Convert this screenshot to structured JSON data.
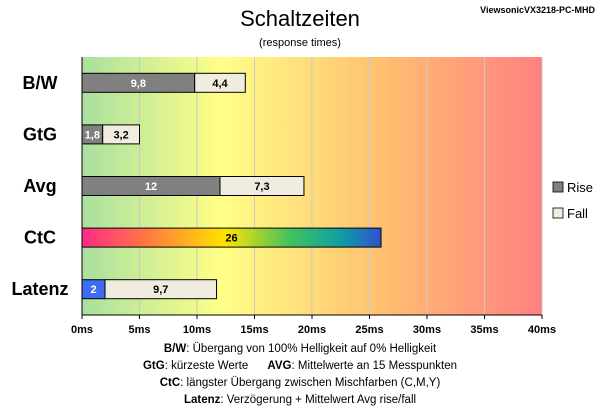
{
  "header": {
    "title": "Schaltzeiten",
    "subtitle": "(response times)",
    "model": "ViewsonicVX3218-PC-MHD"
  },
  "chart_data": {
    "type": "bar",
    "orientation": "horizontal",
    "stacked": true,
    "categories": [
      "B/W",
      "GtG",
      "Avg",
      "CtC",
      "Latenz"
    ],
    "series": [
      {
        "name": "Rise",
        "values": [
          9.8,
          1.8,
          12,
          26,
          2
        ],
        "labels": [
          "9,8",
          "1,8",
          "12",
          "26",
          "2"
        ]
      },
      {
        "name": "Fall",
        "values": [
          4.4,
          3.2,
          7.3,
          null,
          9.7
        ],
        "labels": [
          "4,4",
          "3,2",
          "7,3",
          "",
          "9,7"
        ]
      }
    ],
    "xlim": [
      0,
      40
    ],
    "xticks": [
      0,
      5,
      10,
      15,
      20,
      25,
      30,
      35,
      40
    ],
    "xtick_labels": [
      "0ms",
      "5ms",
      "10ms",
      "15ms",
      "20ms",
      "25ms",
      "30ms",
      "35ms",
      "40ms"
    ],
    "grid": true,
    "legend_position": "right",
    "background": "gradient green-yellow-red",
    "colors": {
      "rise": "#808080",
      "fall": "#f0ede0",
      "latenz_rise": "#3c6cf0",
      "bg_green": "#a8e0a0",
      "bg_yellow": "#ffff88",
      "bg_orange": "#ffc070",
      "bg_red": "#ff8080"
    }
  },
  "notes": [
    {
      "key": "B/W",
      "text": ":  Übergang von 100% Helligkeit auf 0% Helligkeit"
    },
    {
      "key": "GtG",
      "text": ": kürzeste  Werte",
      "key2": "AVG",
      "text2": ":  Mittelwerte  an 15 Messpunkten"
    },
    {
      "key": "CtC",
      "text": ":  längster Übergang zwischen Mischfarben (C,M,Y)"
    },
    {
      "key": "Latenz",
      "text": ": Verzögerung  + Mittelwert Avg rise/fall"
    }
  ]
}
